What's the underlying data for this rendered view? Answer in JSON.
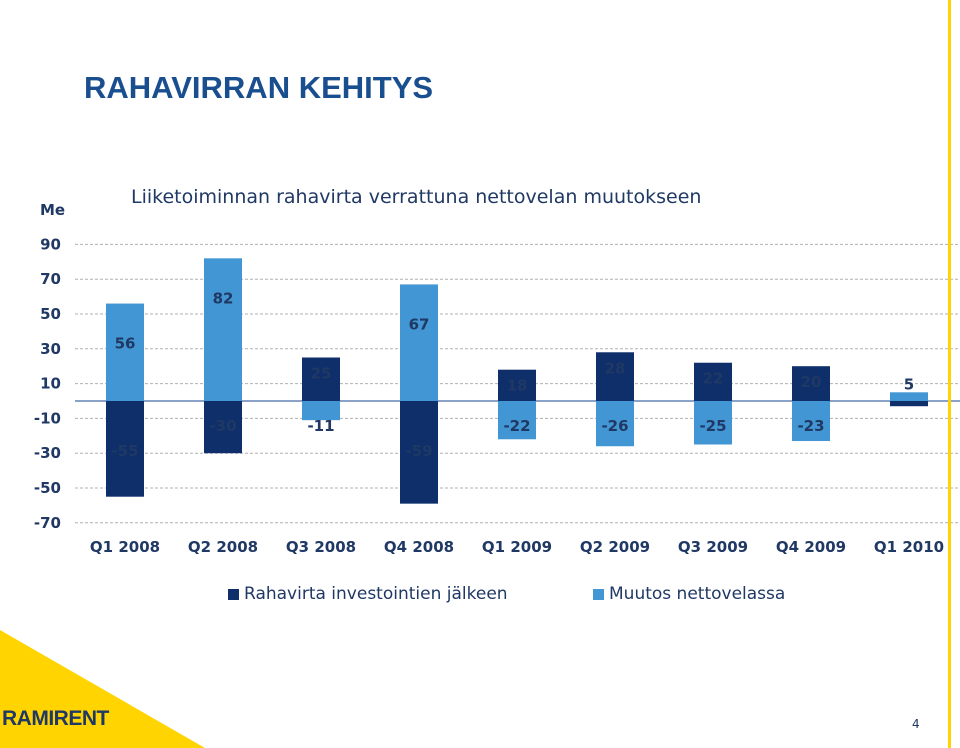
{
  "slide": {
    "title": "RAHAVIRRAN KEHITYS",
    "unit": "Me",
    "logo_text": "RAMIRENT",
    "page_number": "4"
  },
  "colors": {
    "series1": "#0f2f6b",
    "series2": "#4296d3",
    "accent_yellow": "#ffd400",
    "text": "#1f3864",
    "grid": "#b0b0b0"
  },
  "chart_data": {
    "type": "bar",
    "title": "Liiketoiminnan rahavirta verrattuna nettovelan muutokseen",
    "xlabel": "",
    "ylabel": "Me",
    "ylim": [
      -70,
      90
    ],
    "yticks": [
      90,
      70,
      50,
      30,
      10,
      -10,
      -30,
      -50,
      -70
    ],
    "grid": true,
    "legend_position": "bottom",
    "categories": [
      "Q1 2008",
      "Q2 2008",
      "Q3 2008",
      "Q4 2008",
      "Q1 2009",
      "Q2 2009",
      "Q3 2009",
      "Q4 2009",
      "Q1 2010"
    ],
    "series": [
      {
        "name": "Rahavirta investointien jälkeen",
        "values": [
          -55,
          -30,
          25,
          -59,
          18,
          28,
          22,
          20,
          -3
        ],
        "labels": [
          "-55",
          "-30",
          "25",
          "-59",
          "18",
          "28",
          "22",
          "20",
          ""
        ]
      },
      {
        "name": "Muutos nettovelassa",
        "values": [
          56,
          82,
          -11,
          67,
          -22,
          -26,
          -25,
          -23,
          5
        ],
        "labels": [
          "56",
          "82",
          "-11",
          "67",
          "-22",
          "-26",
          "-25",
          "-23",
          "5"
        ]
      }
    ]
  }
}
